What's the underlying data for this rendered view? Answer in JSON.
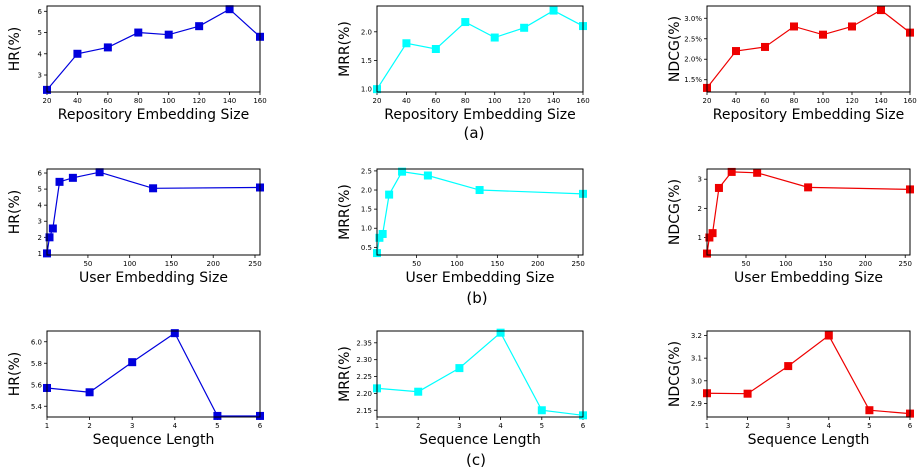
{
  "captions": [
    "(a)",
    "(b)",
    "(c)"
  ],
  "colors": {
    "hr": "#0000dd",
    "mrr": "#00ffff",
    "ndcg": "#ee0000"
  },
  "chart_data": [
    {
      "type": "line",
      "xlabel": "Repository Embedding Size",
      "ylabel": "HR(%)",
      "x": [
        20,
        40,
        60,
        80,
        100,
        120,
        140,
        160
      ],
      "series": [
        {
          "values": [
            2.3,
            4.0,
            4.3,
            5.0,
            4.9,
            5.3,
            6.1,
            4.8
          ]
        }
      ],
      "xlim": [
        20,
        160
      ],
      "ylim": [
        2.2,
        6.25
      ],
      "xticks": [
        20,
        40,
        60,
        80,
        100,
        120,
        140,
        160
      ],
      "yticks": [
        3,
        4,
        5,
        6
      ],
      "color": "#0000dd"
    },
    {
      "type": "line",
      "xlabel": "Repository Embedding Size",
      "ylabel": "MRR(%)",
      "x": [
        20,
        40,
        60,
        80,
        100,
        120,
        140,
        160
      ],
      "series": [
        {
          "values": [
            1.0,
            1.8,
            1.7,
            2.17,
            1.9,
            2.07,
            2.37,
            2.1
          ]
        }
      ],
      "xlim": [
        20,
        160
      ],
      "ylim": [
        0.95,
        2.45
      ],
      "xticks": [
        20,
        40,
        60,
        80,
        100,
        120,
        140,
        160
      ],
      "yticks": [
        1.0,
        1.5,
        2.0
      ],
      "ytickLabels": [
        "1.0",
        "1.5",
        "2.0"
      ],
      "color": "#00ffff"
    },
    {
      "type": "line",
      "xlabel": "Repository Embedding Size",
      "ylabel": "NDCG(%)",
      "x": [
        20,
        40,
        60,
        80,
        100,
        120,
        140,
        160
      ],
      "series": [
        {
          "values": [
            1.3,
            2.2,
            2.3,
            2.8,
            2.6,
            2.8,
            3.2,
            2.65
          ]
        }
      ],
      "xlim": [
        20,
        160
      ],
      "ylim": [
        1.2,
        3.3
      ],
      "xticks": [
        20,
        40,
        60,
        80,
        100,
        120,
        140,
        160
      ],
      "yticks": [
        1.5,
        2.0,
        2.5,
        3.0
      ],
      "ytickLabels": [
        "1.5%",
        "2.0%",
        "2.5%",
        "3.0%"
      ],
      "color": "#ee0000"
    },
    {
      "type": "line",
      "xlabel": "User Embedding Size",
      "ylabel": "HR(%)",
      "x": [
        1,
        4,
        8,
        16,
        32,
        64,
        128,
        256
      ],
      "series": [
        {
          "values": [
            1.0,
            2.0,
            2.55,
            5.45,
            5.7,
            6.05,
            5.05,
            5.1
          ]
        }
      ],
      "xlim": [
        1,
        256
      ],
      "ylim": [
        0.9,
        6.25
      ],
      "xticks": [
        50,
        100,
        150,
        200,
        250
      ],
      "yticks": [
        1,
        2,
        3,
        4,
        5,
        6
      ],
      "color": "#0000dd"
    },
    {
      "type": "line",
      "xlabel": "User Embedding Size",
      "ylabel": "MRR(%)",
      "x": [
        1,
        4,
        8,
        16,
        32,
        64,
        128,
        256
      ],
      "series": [
        {
          "values": [
            0.35,
            0.75,
            0.85,
            1.88,
            2.48,
            2.38,
            2.0,
            1.9
          ]
        }
      ],
      "xlim": [
        1,
        256
      ],
      "ylim": [
        0.3,
        2.55
      ],
      "xticks": [
        50,
        100,
        150,
        200,
        250
      ],
      "yticks": [
        0.5,
        1.0,
        1.5,
        2.0,
        2.5
      ],
      "ytickLabels": [
        "0.5",
        "1.0",
        "1.5",
        "2.0",
        "2.5"
      ],
      "color": "#00ffff"
    },
    {
      "type": "line",
      "xlabel": "User Embedding Size",
      "ylabel": "NDCG(%)",
      "x": [
        1,
        4,
        8,
        16,
        32,
        64,
        128,
        256
      ],
      "series": [
        {
          "values": [
            0.45,
            1.0,
            1.15,
            2.7,
            3.25,
            3.22,
            2.72,
            2.65
          ]
        }
      ],
      "xlim": [
        1,
        256
      ],
      "ylim": [
        0.4,
        3.35
      ],
      "xticks": [
        50,
        100,
        150,
        200,
        250
      ],
      "yticks": [
        1,
        2,
        3
      ],
      "color": "#ee0000"
    },
    {
      "type": "line",
      "xlabel": "Sequence Length",
      "ylabel": "HR(%)",
      "x": [
        1,
        2,
        3,
        4,
        5,
        6
      ],
      "series": [
        {
          "values": [
            5.57,
            5.53,
            5.81,
            6.08,
            5.31,
            5.31
          ]
        }
      ],
      "xlim": [
        1,
        6
      ],
      "ylim": [
        5.3,
        6.1
      ],
      "xticks": [
        1,
        2,
        3,
        4,
        5,
        6
      ],
      "yticks": [
        5.4,
        5.6,
        5.8,
        6.0
      ],
      "ytickLabels": [
        "5.4",
        "5.6",
        "5.8",
        "6.0"
      ],
      "color": "#0000dd"
    },
    {
      "type": "line",
      "xlabel": "Sequence Length",
      "ylabel": "MRR(%)",
      "x": [
        1,
        2,
        3,
        4,
        5,
        6
      ],
      "series": [
        {
          "values": [
            2.215,
            2.205,
            2.275,
            2.38,
            2.15,
            2.135
          ]
        }
      ],
      "xlim": [
        1,
        6
      ],
      "ylim": [
        2.13,
        2.385
      ],
      "xticks": [
        1,
        2,
        3,
        4,
        5,
        6
      ],
      "yticks": [
        2.15,
        2.2,
        2.25,
        2.3,
        2.35
      ],
      "ytickLabels": [
        "2.15",
        "2.20",
        "2.25",
        "2.30",
        "2.35"
      ],
      "color": "#00ffff"
    },
    {
      "type": "line",
      "xlabel": "Sequence Length",
      "ylabel": "NDCG(%)",
      "x": [
        1,
        2,
        3,
        4,
        5,
        6
      ],
      "series": [
        {
          "values": [
            2.945,
            2.943,
            3.065,
            3.2,
            2.87,
            2.855
          ]
        }
      ],
      "xlim": [
        1,
        6
      ],
      "ylim": [
        2.84,
        3.22
      ],
      "xticks": [
        1,
        2,
        3,
        4,
        5,
        6
      ],
      "yticks": [
        2.9,
        3.0,
        3.1,
        3.2
      ],
      "ytickLabels": [
        "2.9",
        "3.0",
        "3.1",
        "3.2"
      ],
      "color": "#ee0000"
    }
  ]
}
